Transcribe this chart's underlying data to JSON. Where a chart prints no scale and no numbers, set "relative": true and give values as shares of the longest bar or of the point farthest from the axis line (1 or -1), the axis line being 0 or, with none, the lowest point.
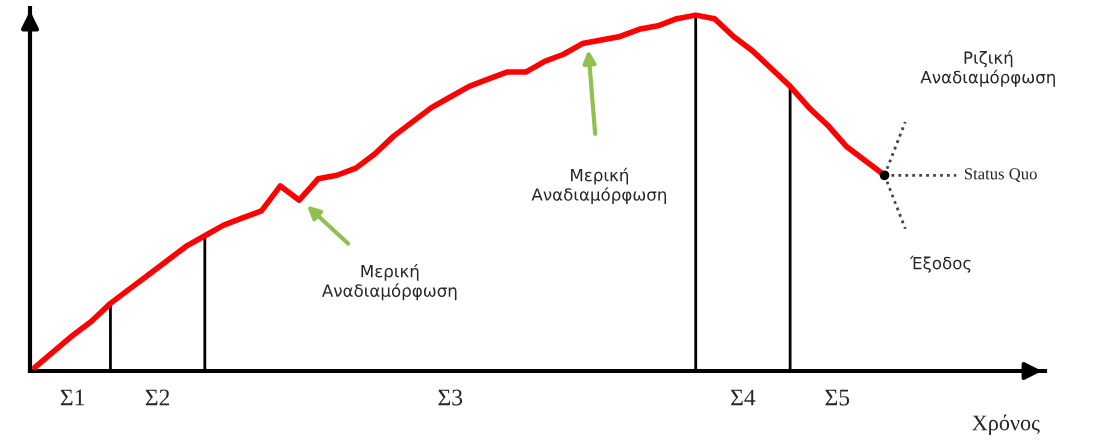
{
  "chart_data": {
    "type": "line",
    "relative": true,
    "xlabel": "Χρόνος",
    "categories": [
      null,
      null,
      null,
      null,
      null,
      null,
      null,
      null,
      null,
      null,
      null,
      null,
      null,
      null,
      null,
      null,
      null,
      null,
      null,
      null,
      null,
      null,
      null,
      null,
      null,
      null,
      null,
      null,
      null,
      null,
      null,
      null,
      null,
      null,
      null,
      null,
      null,
      null,
      null,
      null,
      null,
      null,
      null,
      null,
      null,
      null
    ],
    "series": [
      {
        "color": "#ff0000",
        "values": [
          0.01,
          0.055,
          0.1,
          0.14,
          0.19,
          0.23,
          0.27,
          0.31,
          0.35,
          0.38,
          0.41,
          0.43,
          0.45,
          0.52,
          0.48,
          0.54,
          0.55,
          0.57,
          0.61,
          0.66,
          0.7,
          0.74,
          0.77,
          0.8,
          0.82,
          0.84,
          0.84,
          0.87,
          0.89,
          0.92,
          0.93,
          0.94,
          0.96,
          0.97,
          0.99,
          1.0,
          0.99,
          0.94,
          0.9,
          0.85,
          0.8,
          0.74,
          0.69,
          0.63,
          0.59,
          0.55
        ]
      }
    ],
    "annotations": [
      "Σ1",
      "Σ2",
      "Σ3",
      "Σ4",
      "Σ5",
      "Μερική\nΑναδιαμόρφωση",
      "Μερική\nΑναδιαμόρφωση",
      "Ριζική\nΑναδιαμόρφωση",
      "Status Quo",
      "Έξοδος"
    ]
  }
}
